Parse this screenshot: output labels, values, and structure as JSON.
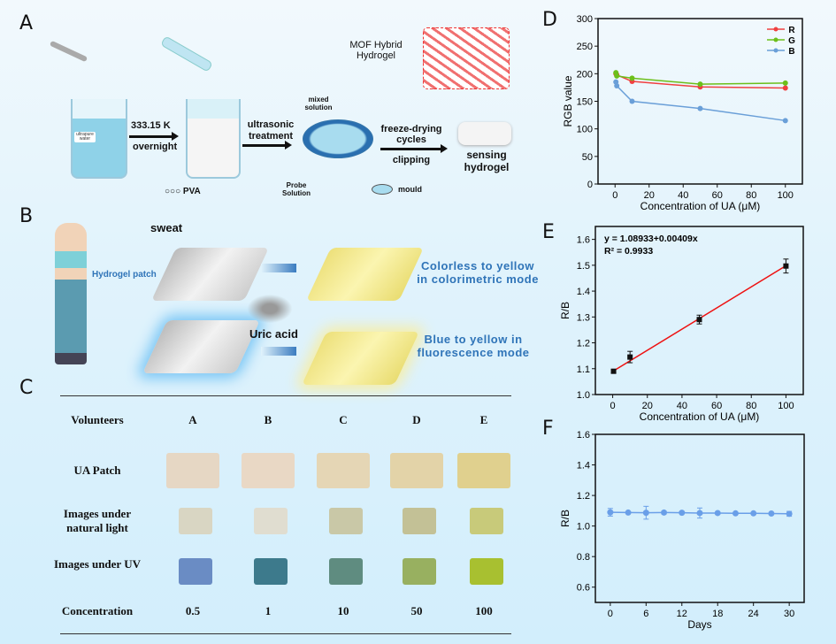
{
  "panels": {
    "a": "A",
    "b": "B",
    "c": "C",
    "d": "D",
    "e": "E",
    "f": "F"
  },
  "panel_a": {
    "step1_top": "333.15 K",
    "step1_bottom": "overnight",
    "step2_top": "ultrasonic",
    "step2_bottom": "treatment",
    "mixed": "mixed solution",
    "step3_top": "freeze-drying cycles",
    "step3_bottom": "clipping",
    "product": "sensing hydrogel",
    "inset": "MOF Hybrid Hydrogel",
    "legend_pva": "PVA",
    "legend_probe": "Probe Solution",
    "legend_mould": "mould",
    "beaker_label": "ultrapure water"
  },
  "panel_b": {
    "sweat": "sweat",
    "patch": "Hydrogel patch",
    "uric": "Uric acid",
    "colorimetric": "Colorless to yellow in colorimetric mode",
    "fluorescence": "Blue to yellow in fluorescence mode"
  },
  "panel_c": {
    "header": [
      "Volunteers",
      "A",
      "B",
      "C",
      "D",
      "E"
    ],
    "rows": [
      "UA Patch",
      "Images under natural light",
      "Images under UV",
      "Concentration"
    ],
    "concentrations": [
      "0.5",
      "1",
      "10",
      "50",
      "100"
    ],
    "patch_colors": [
      "#e6d7c4",
      "#e9d8c5",
      "#e5d6b5",
      "#e3d3a8",
      "#e0d08e"
    ],
    "natural_colors": [
      "#d9d6c3",
      "#e0ddd0",
      "#c9c8a7",
      "#c3c196",
      "#c8ca7a"
    ],
    "uv_colors": [
      "#6a8cc4",
      "#3d7a8c",
      "#5f8c80",
      "#98b060",
      "#a8c030"
    ]
  },
  "chart_data": [
    {
      "type": "line",
      "panel": "D",
      "xlabel": "Concentration of UA (μM)",
      "ylabel": "RGB value",
      "xlim": [
        -10,
        110
      ],
      "ylim": [
        0,
        300
      ],
      "xticks": [
        0,
        20,
        40,
        60,
        80,
        100
      ],
      "yticks": [
        0,
        50,
        100,
        150,
        200,
        250,
        300
      ],
      "legend": "top-right",
      "x": [
        0.5,
        1,
        10,
        50,
        100
      ],
      "series": [
        {
          "name": "R",
          "color": "#f04040",
          "values": [
            200,
            198,
            186,
            176,
            174
          ]
        },
        {
          "name": "G",
          "color": "#6cbf1a",
          "values": [
            202,
            196,
            192,
            181,
            183
          ]
        },
        {
          "name": "B",
          "color": "#6a9fd8",
          "values": [
            185,
            178,
            150,
            137,
            115
          ]
        }
      ]
    },
    {
      "type": "scatter",
      "panel": "E",
      "xlabel": "Concentration of UA (μM)",
      "ylabel": "R/B",
      "xlim": [
        -10,
        110
      ],
      "ylim": [
        1.0,
        1.65
      ],
      "xticks": [
        0,
        20,
        40,
        60,
        80,
        100
      ],
      "yticks": [
        1.0,
        1.1,
        1.2,
        1.3,
        1.4,
        1.5,
        1.6
      ],
      "x": [
        0.5,
        10,
        50,
        100
      ],
      "values": [
        1.09,
        1.145,
        1.29,
        1.497
      ],
      "errors": [
        0.006,
        0.022,
        0.017,
        0.027
      ],
      "fit": {
        "intercept": 1.08933,
        "slope": 0.00409,
        "color": "#ee1111"
      },
      "equation": "y = 1.08933+0.00409x",
      "r2": "R² = 0.9933"
    },
    {
      "type": "line",
      "panel": "F",
      "xlabel": "Days",
      "ylabel": "R/B",
      "xlim": [
        -2.5,
        32.5
      ],
      "ylim": [
        0.5,
        1.6
      ],
      "xticks": [
        0,
        6,
        12,
        18,
        24,
        30
      ],
      "yticks": [
        0.6,
        0.8,
        1.0,
        1.2,
        1.4,
        1.6
      ],
      "color": "#6a9fe8",
      "x": [
        0,
        3,
        6,
        9,
        12,
        15,
        18,
        21,
        24,
        27,
        30
      ],
      "values": [
        1.09,
        1.088,
        1.087,
        1.088,
        1.087,
        1.085,
        1.085,
        1.083,
        1.083,
        1.082,
        1.08
      ],
      "errors": [
        0.025,
        0.006,
        0.042,
        0.01,
        0.006,
        0.033,
        0.006,
        0.006,
        0.006,
        0.006,
        0.016
      ]
    }
  ]
}
